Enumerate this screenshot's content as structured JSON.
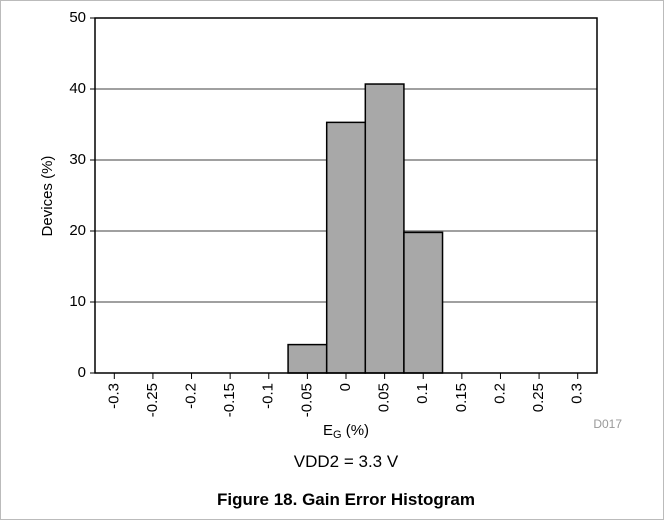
{
  "chart_data": {
    "type": "histogram",
    "title": "Figure 18. Gain Error Histogram",
    "ylabel": "Devices (%)",
    "xlabel": [
      "E",
      "G",
      " (%)"
    ],
    "annotation": "VDD2 = 3.3 V",
    "note": "D017",
    "bins": [
      -0.325,
      -0.275,
      -0.225,
      -0.175,
      -0.125,
      -0.075,
      -0.025,
      0.025,
      0.075,
      0.125,
      0.175,
      0.225,
      0.275,
      0.325
    ],
    "values": [
      0,
      0,
      0,
      0,
      0,
      4,
      35.3,
      40.7,
      19.8,
      0,
      0,
      0,
      0
    ],
    "color": "#a8a8a8",
    "xlim": [
      -0.325,
      0.325
    ],
    "xticks": [
      -0.3,
      -0.25,
      -0.2,
      -0.15,
      -0.1,
      -0.05,
      0,
      0.05,
      0.1,
      0.15,
      0.2,
      0.25,
      0.3
    ],
    "ylim": [
      0,
      50
    ],
    "yticks": [
      0,
      10,
      20,
      30,
      40,
      50
    ],
    "grid": true
  }
}
